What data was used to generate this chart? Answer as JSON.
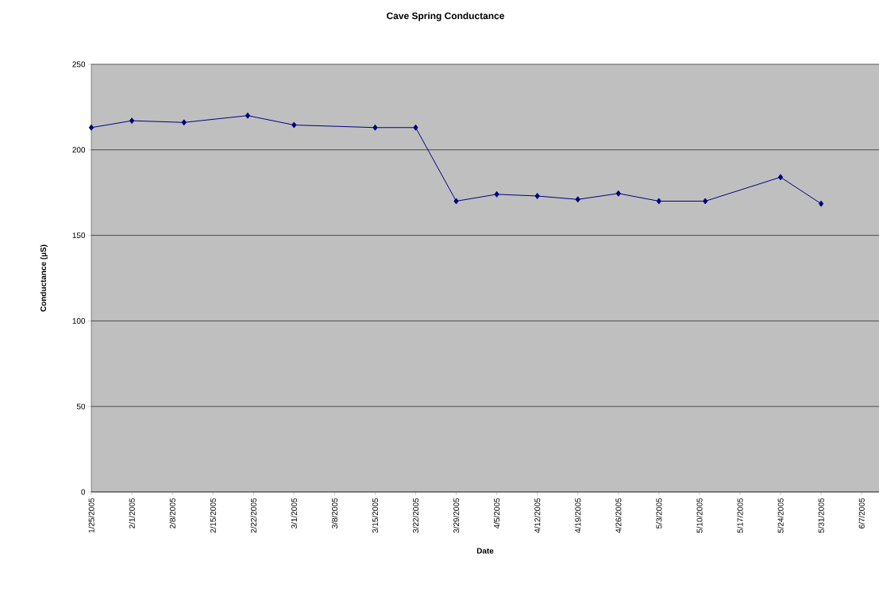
{
  "chart_data": {
    "type": "line",
    "title": "Cave Spring Conductance",
    "xlabel": "Date",
    "ylabel": "Conductance (µS)",
    "x": [
      "2005-01-25",
      "2005-02-01",
      "2005-02-10",
      "2005-02-21",
      "2005-03-01",
      "2005-03-15",
      "2005-03-22",
      "2005-03-29",
      "2005-04-05",
      "2005-04-12",
      "2005-04-19",
      "2005-04-26",
      "2005-05-03",
      "2005-05-11",
      "2005-05-24",
      "2005-05-31"
    ],
    "series": [
      {
        "color": "#000080",
        "values": [
          213,
          217,
          216,
          220,
          214.5,
          213,
          213,
          170,
          174,
          173,
          171,
          174.5,
          170,
          170,
          184,
          168.5
        ]
      }
    ],
    "xlim": [
      "2005-01-25",
      "2005-06-10"
    ],
    "xticks": [
      {
        "value": "2005-01-25",
        "label": "1/25/2005"
      },
      {
        "value": "2005-02-01",
        "label": "2/1/2005"
      },
      {
        "value": "2005-02-08",
        "label": "2/8/2005"
      },
      {
        "value": "2005-02-15",
        "label": "2/15/2005"
      },
      {
        "value": "2005-02-22",
        "label": "2/22/2005"
      },
      {
        "value": "2005-03-01",
        "label": "3/1/2005"
      },
      {
        "value": "2005-03-08",
        "label": "3/8/2005"
      },
      {
        "value": "2005-03-15",
        "label": "3/15/2005"
      },
      {
        "value": "2005-03-22",
        "label": "3/22/2005"
      },
      {
        "value": "2005-03-29",
        "label": "3/29/2005"
      },
      {
        "value": "2005-04-05",
        "label": "4/5/2005"
      },
      {
        "value": "2005-04-12",
        "label": "4/12/2005"
      },
      {
        "value": "2005-04-19",
        "label": "4/19/2005"
      },
      {
        "value": "2005-04-26",
        "label": "4/26/2005"
      },
      {
        "value": "2005-05-03",
        "label": "5/3/2005"
      },
      {
        "value": "2005-05-10",
        "label": "5/10/2005"
      },
      {
        "value": "2005-05-17",
        "label": "5/17/2005"
      },
      {
        "value": "2005-05-24",
        "label": "5/24/2005"
      },
      {
        "value": "2005-05-31",
        "label": "5/31/2005"
      },
      {
        "value": "2005-06-07",
        "label": "6/7/2005"
      }
    ],
    "ylim": [
      0,
      250
    ],
    "yticks": [
      0,
      50,
      100,
      150,
      200,
      250
    ],
    "grid": "y",
    "marker": "diamond",
    "line_style": "solid"
  }
}
